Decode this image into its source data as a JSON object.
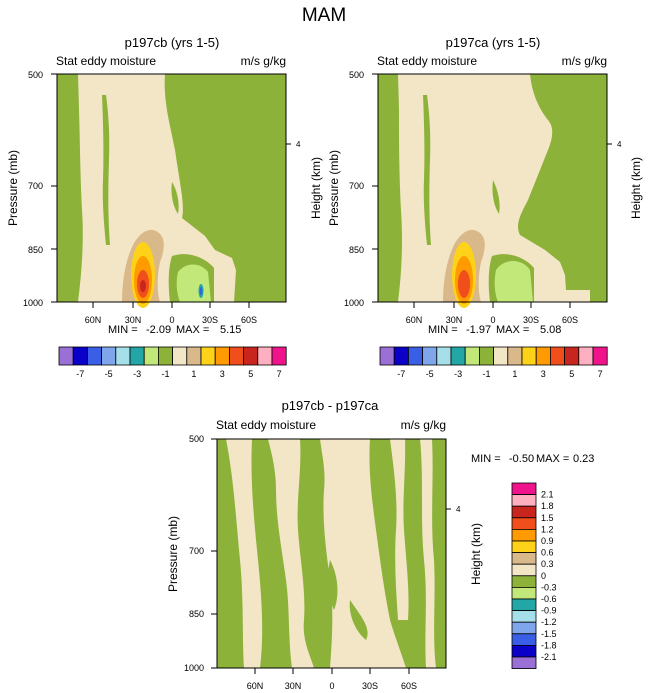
{
  "page_title": "MAM",
  "colors": {
    "green": "#8DB23A",
    "cream": "#F3E6C6",
    "tan": "#D9B88A",
    "light_green": "#C2E87A",
    "yellow": "#FFD21A",
    "orange": "#FF9A00",
    "red_orange": "#F04E1A",
    "dark_red": "#C8251E",
    "teal": "#1FA2A6",
    "frame": "#000000"
  },
  "chart_data": [
    {
      "type": "contour",
      "id": "panel1",
      "title": "p197cb (yrs 1-5)",
      "left_label": "Stat eddy moisture",
      "right_label": "m/s g/kg",
      "ylabel": "Pressure (mb)",
      "right_axis_label": "Height (km)",
      "yticks": [
        "500",
        "700",
        "850",
        "1000"
      ],
      "right_ticks": [
        "4"
      ],
      "xticks": [
        "60N",
        "30N",
        "0",
        "30S",
        "60S"
      ],
      "stats": {
        "min_label": "MIN =",
        "min": "-2.09",
        "max_label": "MAX =",
        "max": "5.15"
      }
    },
    {
      "type": "contour",
      "id": "panel2",
      "title": "p197ca (yrs 1-5)",
      "left_label": "Stat eddy moisture",
      "right_label": "m/s g/kg",
      "ylabel": "Pressure (mb)",
      "right_axis_label": "Height (km)",
      "yticks": [
        "500",
        "700",
        "850",
        "1000"
      ],
      "right_ticks": [
        "4"
      ],
      "xticks": [
        "60N",
        "30N",
        "0",
        "30S",
        "60S"
      ],
      "stats": {
        "min_label": "MIN =",
        "min": "-1.97",
        "max_label": "MAX =",
        "max": "5.08"
      }
    },
    {
      "type": "contour",
      "id": "panel3",
      "title": "p197cb - p197ca",
      "left_label": "Stat eddy moisture",
      "right_label": "m/s g/kg",
      "ylabel": "Pressure (mb)",
      "right_axis_label": "Height (km)",
      "yticks": [
        "500",
        "700",
        "850",
        "1000"
      ],
      "right_ticks": [
        "4"
      ],
      "xticks": [
        "60N",
        "30N",
        "0",
        "30S",
        "60S"
      ],
      "stats": {
        "min_label": "MIN =",
        "min": "-0.50",
        "max_label": "MAX =",
        "max": "0.23"
      }
    }
  ],
  "colorbar_main": {
    "colors": [
      "#9A70D6",
      "#0A00C8",
      "#3A5FE6",
      "#7FA6EA",
      "#A6DFEA",
      "#23A6A6",
      "#C2E87A",
      "#8DB23A",
      "#F3E6C6",
      "#D9B88A",
      "#FFD21A",
      "#FF9A00",
      "#F04E1A",
      "#C8251E",
      "#FFB0C0",
      "#F0148C"
    ],
    "labels": [
      "-7",
      "-5",
      "-3",
      "-1",
      "1",
      "3",
      "5",
      "7"
    ]
  },
  "colorbar_diff": {
    "colors": [
      "#F0148C",
      "#FFB0C0",
      "#C8251E",
      "#F04E1A",
      "#FF9A00",
      "#FFD21A",
      "#D9B88A",
      "#F3E6C6",
      "#8DB23A",
      "#C2E87A",
      "#23A6A6",
      "#A6DFEA",
      "#7FA6EA",
      "#3A5FE6",
      "#0A00C8",
      "#9A70D6"
    ],
    "labels": [
      "2.1",
      "1.8",
      "1.5",
      "1.2",
      "0.9",
      "0.6",
      "0.3",
      "0",
      "-0.3",
      "-0.6",
      "-0.9",
      "-1.2",
      "-1.5",
      "-1.8",
      "-2.1"
    ]
  }
}
